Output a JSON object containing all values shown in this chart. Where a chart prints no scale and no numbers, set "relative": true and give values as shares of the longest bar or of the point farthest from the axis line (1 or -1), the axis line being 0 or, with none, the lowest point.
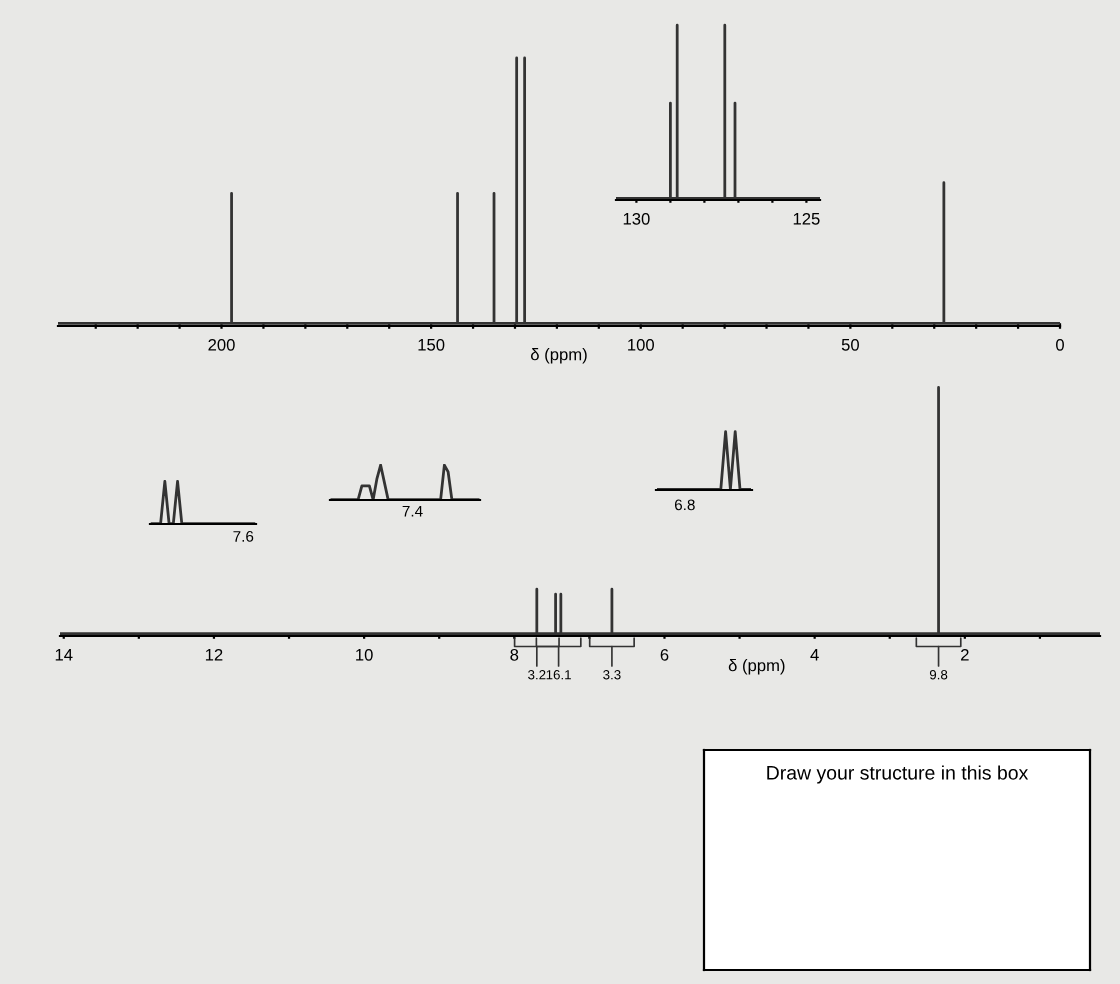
{
  "chart_data": [
    {
      "type": "line",
      "relative": true,
      "xlabel": "δ (ppm)",
      "color": "#333333",
      "xlim": [
        239,
        0
      ],
      "xticks": [
        200,
        150,
        100,
        50,
        0,
        {
          "value": 230,
          "label": null
        },
        {
          "value": 220,
          "label": null
        },
        {
          "value": 210,
          "label": null
        },
        {
          "value": 190,
          "label": null
        },
        {
          "value": 180,
          "label": null
        },
        {
          "value": 170,
          "label": null
        },
        {
          "value": 160,
          "label": null
        },
        {
          "value": 140,
          "label": null
        },
        {
          "value": 130,
          "label": null
        },
        {
          "value": 120,
          "label": null
        },
        {
          "value": 110,
          "label": null
        },
        {
          "value": 90,
          "label": null
        },
        {
          "value": 80,
          "label": null
        },
        {
          "value": 70,
          "label": null
        },
        {
          "value": 60,
          "label": null
        },
        {
          "value": 40,
          "label": null
        },
        {
          "value": 30,
          "label": null
        },
        {
          "value": 20,
          "label": null
        },
        {
          "value": 10,
          "label": null
        }
      ],
      "x": [
        239,
        197.6,
        197.6,
        197.6,
        143.7,
        143.7,
        143.7,
        135,
        135,
        135,
        129.6,
        129.6,
        129.6,
        127.7,
        127.7,
        127.7,
        27.7,
        27.7,
        27.7,
        0
      ],
      "values": [
        0,
        0,
        0.49,
        0,
        0,
        0.49,
        0,
        0,
        0.49,
        0,
        0,
        1,
        0,
        0,
        1,
        0,
        0,
        0.53,
        0,
        0
      ]
    },
    {
      "type": "line",
      "relative": true,
      "color": "#333333",
      "xlim": [
        130.6,
        124.6
      ],
      "xticks": [
        130,
        125,
        {
          "value": 129,
          "label": null
        },
        {
          "value": 128,
          "label": null
        },
        {
          "value": 127,
          "label": null
        },
        {
          "value": 126,
          "label": null
        }
      ],
      "x": [
        130.6,
        129.0,
        129.0,
        129.0,
        128.8,
        128.8,
        128.8,
        127.4,
        127.4,
        127.4,
        127.1,
        127.1,
        127.1,
        124.6
      ],
      "values": [
        0,
        0,
        0.55,
        0,
        0,
        1,
        0,
        0,
        1,
        0,
        0,
        0.55,
        0,
        0
      ]
    },
    {
      "type": "line",
      "relative": true,
      "xlabel": "δ (ppm)",
      "color": "#333333",
      "xlim": [
        14.05,
        0.2
      ],
      "xticks": [
        14,
        12,
        10,
        8,
        6,
        4,
        2,
        {
          "value": 13,
          "label": null
        },
        {
          "value": 11,
          "label": null
        },
        {
          "value": 9,
          "label": null
        },
        {
          "value": 7,
          "label": null
        },
        {
          "value": 5,
          "label": null
        },
        {
          "value": 3,
          "label": null
        },
        {
          "value": 1,
          "label": null
        }
      ],
      "x": [
        14.05,
        7.7,
        7.7,
        7.7,
        7.45,
        7.45,
        7.45,
        7.38,
        7.38,
        7.38,
        6.7,
        6.7,
        6.7,
        2.35,
        2.35,
        2.35,
        0.2
      ],
      "values": [
        0,
        0,
        0.18,
        0,
        0,
        0.16,
        0,
        0,
        0.16,
        0,
        0,
        0.18,
        0,
        0,
        1,
        0,
        0
      ],
      "annotations": [
        {
          "text": "3.2",
          "x": 7.7,
          "y": 0
        },
        {
          "text": "16.1",
          "x": 7.41,
          "y": 0
        },
        {
          "text": "3.3",
          "x": 6.7,
          "y": 0
        },
        {
          "text": "9.8",
          "x": 2.35,
          "y": 0
        }
      ]
    },
    {
      "type": "line",
      "relative": true,
      "color": "#333333",
      "categories": [
        null,
        null,
        null,
        null,
        null,
        null,
        null,
        null,
        null,
        null,
        null,
        null,
        null,
        null,
        null,
        null,
        null,
        null,
        null,
        null,
        null,
        null,
        null,
        null,
        null
      ],
      "values": [
        0,
        0,
        0,
        1,
        0,
        0,
        1,
        0,
        0,
        0,
        0,
        0,
        0,
        0,
        0,
        0,
        0,
        0,
        0,
        0,
        0,
        0,
        0,
        0,
        0
      ],
      "annotations": [
        "7.6"
      ]
    },
    {
      "type": "line",
      "relative": true,
      "color": "#333333",
      "categories": [
        null,
        null,
        null,
        null,
        null,
        null,
        null,
        null,
        null,
        null,
        null,
        null,
        null,
        null,
        null,
        null,
        null,
        null,
        null,
        null,
        null,
        null,
        null,
        null,
        null,
        null,
        null,
        null,
        null,
        null,
        null,
        null,
        null,
        null,
        null,
        null,
        null,
        null,
        null,
        null
      ],
      "values": [
        0,
        0,
        0,
        0,
        0,
        0,
        0,
        0,
        0.4,
        0.4,
        0.4,
        0,
        0.6,
        1,
        0.5,
        0,
        0,
        0,
        0,
        0,
        0,
        0,
        0,
        0,
        0,
        0,
        0,
        0,
        0,
        0,
        1,
        0.8,
        0,
        0,
        0,
        0,
        0,
        0,
        0,
        0
      ],
      "annotations": [
        "7.4"
      ]
    },
    {
      "type": "line",
      "relative": true,
      "color": "#333333",
      "categories": [
        null,
        null,
        null,
        null,
        null,
        null,
        null,
        null,
        null,
        null,
        null,
        null,
        null,
        null,
        null,
        null,
        null,
        null,
        null,
        null
      ],
      "values": [
        0,
        0,
        0,
        0,
        0,
        0,
        0,
        0,
        0,
        0,
        0,
        0,
        0,
        0,
        1,
        0,
        1,
        0,
        0,
        0
      ],
      "annotations": [
        "6.8"
      ]
    },
    {
      "type": "other",
      "title": "Draw your structure in this box"
    }
  ]
}
